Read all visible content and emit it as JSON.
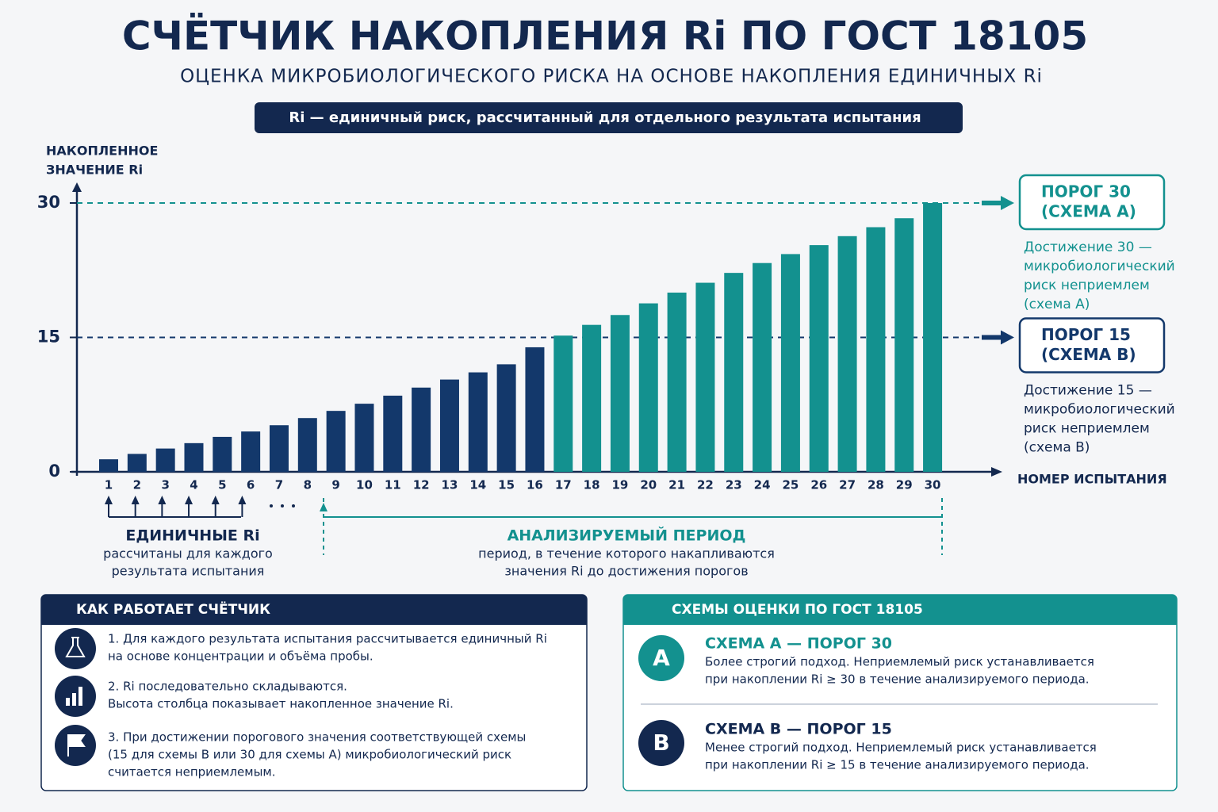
{
  "header": {
    "title": "СЧЁТЧИК НАКОПЛЕНИЯ Ri ПО ГОСТ 18105",
    "subtitle": "ОЦЕНКА МИКРОБИОЛОГИЧЕСКОГО РИСКА НА ОСНОВЕ НАКОПЛЕНИЯ ЕДИНИЧНЫХ Ri",
    "banner": "Ri — единичный риск, рассчитанный для отдельного результата испытания"
  },
  "chart_data": {
    "type": "bar",
    "y_label": [
      "НАКОПЛЕННОЕ",
      "ЗНАЧЕНИЕ Ri"
    ],
    "x_label": "НОМЕР ИСПЫТАНИЯ",
    "categories": [
      "1",
      "2",
      "3",
      "4",
      "5",
      "6",
      "7",
      "8",
      "9",
      "10",
      "11",
      "12",
      "13",
      "14",
      "15",
      "16",
      "17",
      "18",
      "19",
      "20",
      "21",
      "22",
      "23",
      "24",
      "25",
      "26",
      "27",
      "28",
      "29",
      "30"
    ],
    "values": [
      1.4,
      2.0,
      2.6,
      3.2,
      3.9,
      4.5,
      5.2,
      6.0,
      6.8,
      7.6,
      8.5,
      9.4,
      10.3,
      11.1,
      12.0,
      13.9,
      15.2,
      16.4,
      17.5,
      18.8,
      20.0,
      21.1,
      22.2,
      23.3,
      24.3,
      25.3,
      26.3,
      27.3,
      28.3,
      30.0
    ],
    "colors": [
      "#13386b",
      "#13386b",
      "#13386b",
      "#13386b",
      "#13386b",
      "#13386b",
      "#13386b",
      "#13386b",
      "#13386b",
      "#13386b",
      "#13386b",
      "#13386b",
      "#13386b",
      "#13386b",
      "#13386b",
      "#13386b",
      "#13918f",
      "#13918f",
      "#13918f",
      "#13918f",
      "#13918f",
      "#13918f",
      "#13918f",
      "#13918f",
      "#13918f",
      "#13918f",
      "#13918f",
      "#13918f",
      "#13918f",
      "#13918f"
    ],
    "ylim": [
      0,
      30
    ],
    "yticks": [
      0,
      15,
      30
    ],
    "thresholds": [
      {
        "value": 30,
        "label": [
          "ПОРОГ 30",
          "(СХЕМА А)"
        ],
        "note": [
          "Достижение 30 —",
          "микробиологический",
          "риск неприемлем",
          "(схема А)"
        ],
        "color": "#13918f"
      },
      {
        "value": 15,
        "label": [
          "ПОРОГ 15",
          "(СХЕМА В)"
        ],
        "note": [
          "Достижение 15 —",
          "микробиологический",
          "риск неприемлем",
          "(схема В)"
        ],
        "color": "#13386b"
      }
    ],
    "annotations": [
      {
        "title": "ЕДИНИЧНЫЕ Ri",
        "text": [
          "рассчитаны для каждого",
          "результата испытания"
        ]
      },
      {
        "title": "АНАЛИЗИРУЕМЫЙ ПЕРИОД",
        "text": [
          "период, в течение которого накапливаются",
          "значения Ri до достижения порогов"
        ]
      }
    ]
  },
  "how": {
    "title": "КАК РАБОТАЕТ СЧЁТЧИК",
    "steps": [
      [
        "1. Для каждого результата испытания рассчитывается единичный Ri",
        "на основе концентрации и объёма пробы."
      ],
      [
        "2. Ri последовательно складываются.",
        "Высота столбца показывает накопленное значение Ri."
      ],
      [
        "3. При достижении порогового значения соответствующей схемы",
        "(15 для схемы В или 30 для схемы А) микробиологический риск",
        "считается неприемлемым."
      ]
    ]
  },
  "schemes": {
    "title": "СХЕМЫ ОЦЕНКИ ПО ГОСТ 18105",
    "items": [
      {
        "letter": "A",
        "title": "СХЕМА А — ПОРОГ 30",
        "text": [
          "Более строгий подход. Неприемлемый риск устанавливается",
          "при накоплении Ri ≥ 30 в течение анализируемого периода."
        ]
      },
      {
        "letter": "B",
        "title": "СХЕМА В — ПОРОГ 15",
        "text": [
          "Менее строгий подход. Неприемлемый риск устанавливается",
          "при накоплении Ri ≥ 15 в течение анализируемого периода."
        ]
      }
    ]
  }
}
